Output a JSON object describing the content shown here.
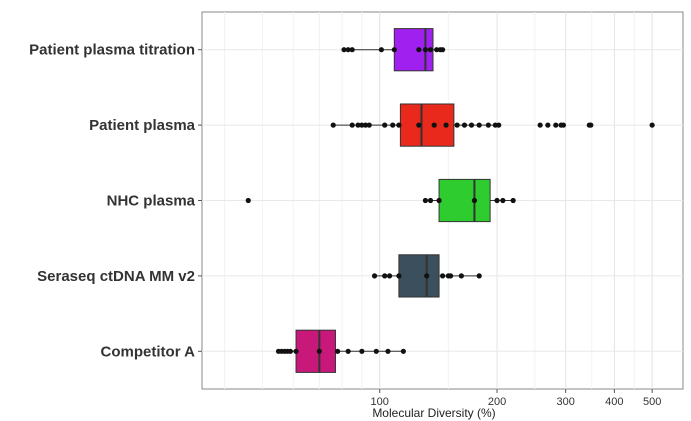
{
  "chart_data": {
    "type": "boxplot",
    "orientation": "horizontal",
    "title": "",
    "xlabel": "Molecular Diversity (%)",
    "ylabel": "",
    "x_scale": "log",
    "xlim": [
      35,
      600
    ],
    "x_ticks": [
      100,
      200,
      300,
      400,
      500
    ],
    "grid": true,
    "legend": "none",
    "categories": [
      "Patient plasma titration",
      "Patient plasma",
      "NHC plasma",
      "Seraseq ctDNA MM v2",
      "Competitor A"
    ],
    "series": [
      {
        "category": "Patient plasma titration",
        "color": "#a020f0",
        "q1": 109,
        "median": 131,
        "q3": 137,
        "whisker_low": 81,
        "whisker_high": 145,
        "points": [
          81,
          83,
          85,
          101,
          109,
          126,
          131,
          135,
          140,
          143,
          145
        ]
      },
      {
        "category": "Patient plasma",
        "color": "#e8291c",
        "q1": 113,
        "median": 128,
        "q3": 155,
        "whisker_low": 76,
        "whisker_high": 200,
        "points": [
          76,
          85,
          88,
          90,
          92,
          94,
          103,
          108,
          112,
          126,
          138,
          148,
          158,
          165,
          172,
          180,
          190,
          198,
          202,
          258,
          270,
          283,
          292,
          296,
          345,
          348,
          500
        ]
      },
      {
        "category": "NHC plasma",
        "color": "#2ecc2e",
        "q1": 142,
        "median": 175,
        "q3": 192,
        "whisker_low": 131,
        "whisker_high": 220,
        "points": [
          46,
          131,
          135,
          142,
          175,
          200,
          207,
          220
        ]
      },
      {
        "category": "Seraseq ctDNA MM v2",
        "color": "#3c4f5c",
        "q1": 112,
        "median": 132,
        "q3": 142,
        "whisker_low": 97,
        "whisker_high": 180,
        "points": [
          97,
          103,
          106,
          112,
          132,
          145,
          150,
          152,
          162,
          180
        ]
      },
      {
        "category": "Competitor A",
        "color": "#c8187a",
        "q1": 61,
        "median": 70,
        "q3": 77,
        "whisker_low": 55,
        "whisker_high": 115,
        "points": [
          55,
          56,
          57,
          58,
          59,
          61,
          70,
          78,
          83,
          90,
          98,
          105,
          115
        ]
      }
    ]
  }
}
